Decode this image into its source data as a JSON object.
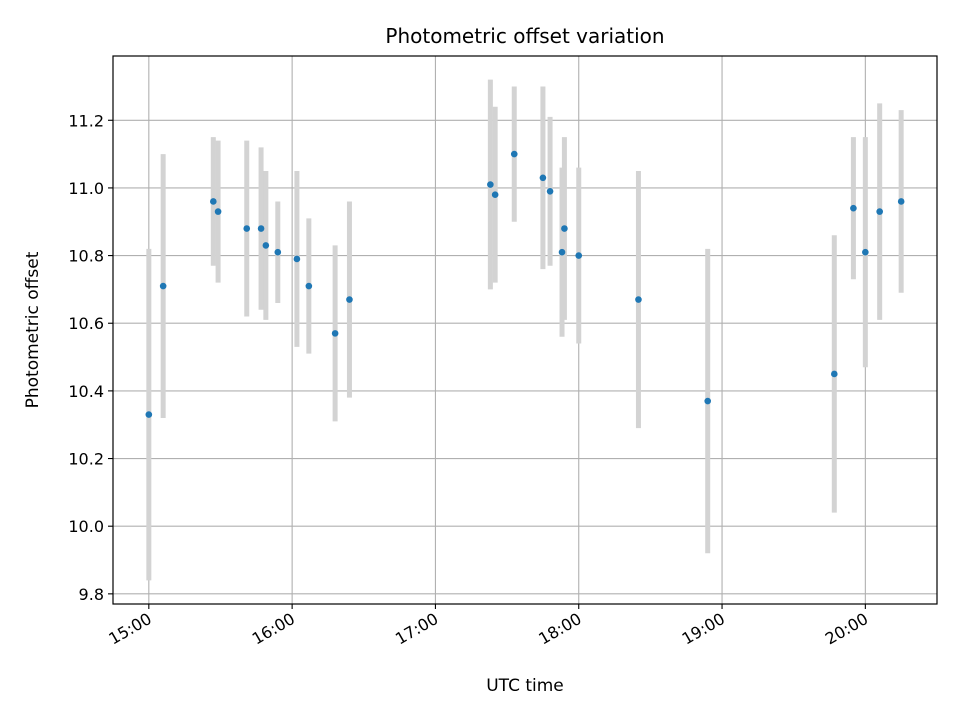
{
  "chart_data": {
    "type": "scatter",
    "title": "Photometric offset variation",
    "xlabel": "UTC time",
    "ylabel": "Photometric offset",
    "x_ticks": [
      "15:00",
      "16:00",
      "17:00",
      "18:00",
      "19:00",
      "20:00"
    ],
    "y_ticks": [
      "9.8",
      "10.0",
      "10.2",
      "10.4",
      "10.6",
      "10.8",
      "11.0",
      "11.2"
    ],
    "xlim": [
      "14:45",
      "20:30"
    ],
    "ylim": [
      9.77,
      11.39
    ],
    "grid": true,
    "colors": {
      "points": "#1f77b4",
      "errorbars": "#d3d3d3",
      "grid": "#b0b0b0"
    },
    "points": [
      {
        "x": "15:00",
        "y": 10.33,
        "err": 0.49
      },
      {
        "x": "15:06",
        "y": 10.71,
        "err": 0.39
      },
      {
        "x": "15:27",
        "y": 10.96,
        "err": 0.19
      },
      {
        "x": "15:29",
        "y": 10.93,
        "err": 0.21
      },
      {
        "x": "15:41",
        "y": 10.88,
        "err": 0.26
      },
      {
        "x": "15:47",
        "y": 10.88,
        "err": 0.24
      },
      {
        "x": "15:49",
        "y": 10.83,
        "err": 0.22
      },
      {
        "x": "15:54",
        "y": 10.81,
        "err": 0.15
      },
      {
        "x": "16:02",
        "y": 10.79,
        "err": 0.26
      },
      {
        "x": "16:07",
        "y": 10.71,
        "err": 0.2
      },
      {
        "x": "16:18",
        "y": 10.57,
        "err": 0.26
      },
      {
        "x": "16:24",
        "y": 10.67,
        "err": 0.29
      },
      {
        "x": "17:23",
        "y": 11.01,
        "err": 0.31
      },
      {
        "x": "17:25",
        "y": 10.98,
        "err": 0.26
      },
      {
        "x": "17:33",
        "y": 11.1,
        "err": 0.2
      },
      {
        "x": "17:45",
        "y": 11.03,
        "err": 0.27
      },
      {
        "x": "17:48",
        "y": 10.99,
        "err": 0.22
      },
      {
        "x": "17:53",
        "y": 10.81,
        "err": 0.25
      },
      {
        "x": "17:54",
        "y": 10.88,
        "err": 0.27
      },
      {
        "x": "18:00",
        "y": 10.8,
        "err": 0.26
      },
      {
        "x": "18:25",
        "y": 10.67,
        "err": 0.38
      },
      {
        "x": "18:54",
        "y": 10.37,
        "err": 0.45
      },
      {
        "x": "19:47",
        "y": 10.45,
        "err": 0.41
      },
      {
        "x": "19:55",
        "y": 10.94,
        "err": 0.21
      },
      {
        "x": "20:00",
        "y": 10.81,
        "err": 0.34
      },
      {
        "x": "20:06",
        "y": 10.93,
        "err": 0.32
      },
      {
        "x": "20:15",
        "y": 10.96,
        "err": 0.27
      }
    ]
  }
}
